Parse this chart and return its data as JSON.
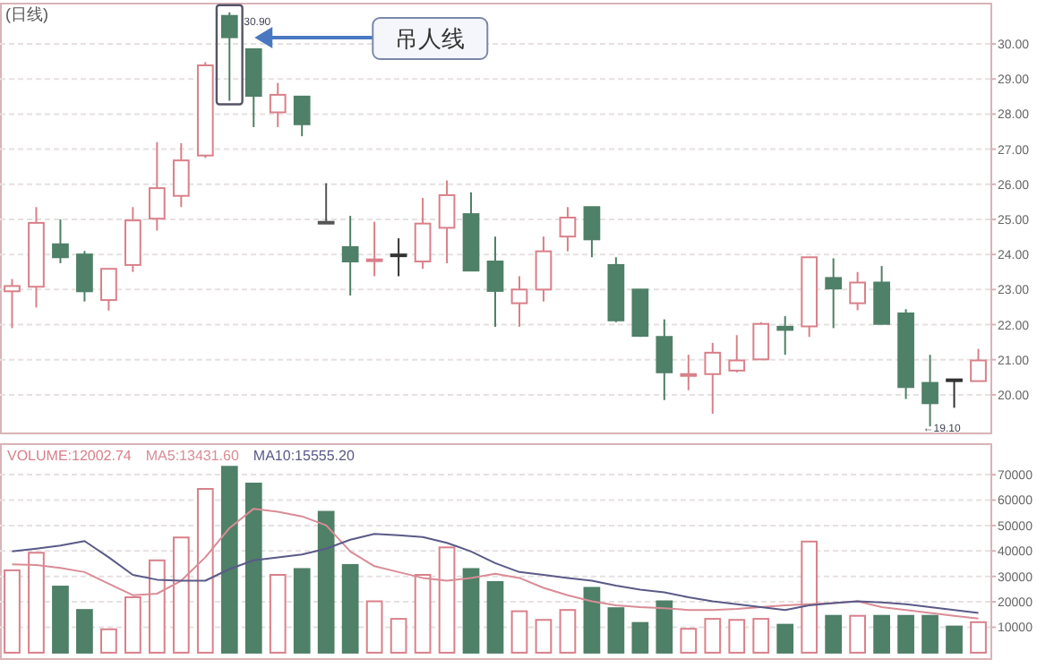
{
  "chart_data": [
    {
      "type": "candlestick",
      "title": "(日线)",
      "categories": [
        null,
        null,
        null,
        null,
        null,
        null,
        null,
        null,
        null,
        null,
        null,
        null,
        null,
        null,
        null,
        null,
        null,
        null,
        null,
        null,
        null,
        null,
        null,
        null,
        null,
        null,
        null,
        null,
        null,
        null,
        null,
        null,
        null,
        null,
        null,
        null,
        null,
        null,
        null,
        null,
        null
      ],
      "ohlc": [
        [
          22.95,
          23.3,
          21.9,
          23.1
        ],
        [
          23.08,
          25.35,
          22.49,
          24.9
        ],
        [
          24.29,
          25.0,
          23.75,
          23.92
        ],
        [
          24.0,
          24.1,
          22.66,
          22.95
        ],
        [
          22.7,
          23.6,
          22.4,
          23.59
        ],
        [
          23.7,
          25.35,
          23.5,
          24.97
        ],
        [
          25.02,
          27.2,
          24.68,
          25.89
        ],
        [
          25.67,
          27.17,
          25.35,
          26.68
        ],
        [
          26.82,
          29.48,
          26.75,
          29.39
        ],
        [
          30.8,
          30.9,
          28.38,
          30.19
        ],
        [
          29.85,
          29.85,
          27.63,
          28.52
        ],
        [
          28.05,
          28.89,
          27.63,
          28.55
        ],
        [
          28.5,
          28.5,
          27.37,
          27.71
        ],
        [
          24.93,
          26.03,
          24.93,
          24.93
        ],
        [
          24.21,
          25.1,
          22.83,
          23.8
        ],
        [
          23.84,
          24.93,
          23.38,
          23.86
        ],
        [
          24.0,
          24.46,
          23.38,
          24.0
        ],
        [
          23.8,
          25.61,
          23.59,
          24.88
        ],
        [
          24.76,
          26.11,
          23.75,
          25.69
        ],
        [
          25.15,
          25.77,
          23.54,
          23.54
        ],
        [
          23.8,
          24.51,
          21.94,
          22.96
        ],
        [
          22.61,
          23.38,
          21.94,
          23.0
        ],
        [
          23.0,
          24.51,
          22.66,
          24.09
        ],
        [
          24.51,
          25.35,
          24.09,
          25.05
        ],
        [
          25.35,
          25.35,
          23.92,
          24.43
        ],
        [
          23.7,
          23.92,
          22.07,
          22.12
        ],
        [
          23.0,
          23.0,
          21.65,
          21.68
        ],
        [
          21.65,
          22.15,
          19.85,
          20.64
        ],
        [
          20.59,
          21.14,
          20.13,
          20.59
        ],
        [
          20.59,
          21.48,
          19.46,
          21.2
        ],
        [
          20.69,
          21.7,
          20.64,
          20.98
        ],
        [
          21.01,
          22.07,
          21.0,
          22.02
        ],
        [
          21.94,
          22.24,
          21.14,
          21.85
        ],
        [
          21.95,
          23.92,
          21.65,
          23.92
        ],
        [
          23.33,
          23.89,
          21.9,
          23.03
        ],
        [
          22.61,
          23.5,
          22.41,
          23.2
        ],
        [
          23.2,
          23.67,
          22.02,
          22.02
        ],
        [
          22.32,
          22.44,
          19.88,
          20.22
        ],
        [
          20.34,
          21.14,
          19.1,
          19.76
        ],
        [
          20.44,
          20.44,
          19.63,
          20.44
        ],
        [
          20.39,
          21.31,
          20.39,
          20.98
        ]
      ],
      "colors": [
        "#d9808a",
        "#d9808a",
        "#4f8068",
        "#4f8068",
        "#d9808a",
        "#d9808a",
        "#d9808a",
        "#d9808a",
        "#d9808a",
        "#4f8068",
        "#4f8068",
        "#d9808a",
        "#4f8068",
        "#555555",
        "#4f8068",
        "#d9808a",
        "#333333",
        "#d9808a",
        "#d9808a",
        "#4f8068",
        "#4f8068",
        "#d9808a",
        "#d9808a",
        "#d9808a",
        "#4f8068",
        "#4f8068",
        "#4f8068",
        "#4f8068",
        "#d9808a",
        "#d9808a",
        "#d9808a",
        "#d9808a",
        "#4f8068",
        "#d9808a",
        "#4f8068",
        "#d9808a",
        "#4f8068",
        "#4f8068",
        "#4f8068",
        "#333333",
        "#d9808a"
      ],
      "ylim": [
        18.9,
        31.15
      ],
      "yticks": [
        {
          "value": 20,
          "label": "20.00"
        },
        {
          "value": 21,
          "label": "21.00"
        },
        {
          "value": 22,
          "label": "22.00"
        },
        {
          "value": 23,
          "label": "23.00"
        },
        {
          "value": 24,
          "label": "24.00"
        },
        {
          "value": 25,
          "label": "25.00"
        },
        {
          "value": 26,
          "label": "26.00"
        },
        {
          "value": 27,
          "label": "27.00"
        },
        {
          "value": 28,
          "label": "28.00"
        },
        {
          "value": 29,
          "label": "29.00"
        },
        {
          "value": 30,
          "label": "30.00"
        }
      ],
      "grid": "y",
      "annotations": [
        "30.90",
        "←19.10",
        "吊人线"
      ]
    },
    {
      "type": "bar",
      "categories": [
        null,
        null,
        null,
        null,
        null,
        null,
        null,
        null,
        null,
        null,
        null,
        null,
        null,
        null,
        null,
        null,
        null,
        null,
        null,
        null,
        null,
        null,
        null,
        null,
        null,
        null,
        null,
        null,
        null,
        null,
        null,
        null,
        null,
        null,
        null,
        null,
        null,
        null,
        null,
        null,
        null
      ],
      "series": [
        {
          "name": "VOLUME:12002.74",
          "color": "#d9808a",
          "colors": [
            "#d9808a",
            "#d9808a",
            "#4f8068",
            "#4f8068",
            "#d9808a",
            "#d9808a",
            "#d9808a",
            "#d9808a",
            "#d9808a",
            "#4f8068",
            "#4f8068",
            "#d9808a",
            "#4f8068",
            "#4f8068",
            "#4f8068",
            "#d9808a",
            "#d9808a",
            "#d9808a",
            "#d9808a",
            "#4f8068",
            "#4f8068",
            "#d9808a",
            "#d9808a",
            "#d9808a",
            "#4f8068",
            "#4f8068",
            "#4f8068",
            "#4f8068",
            "#d9808a",
            "#d9808a",
            "#d9808a",
            "#d9808a",
            "#4f8068",
            "#d9808a",
            "#4f8068",
            "#d9808a",
            "#4f8068",
            "#4f8068",
            "#4f8068",
            "#4f8068",
            "#d9808a"
          ],
          "values": [
            32400,
            39300,
            26000,
            16800,
            9200,
            21800,
            36300,
            45300,
            64400,
            73100,
            66500,
            30600,
            32900,
            55400,
            34500,
            20200,
            13300,
            30600,
            41400,
            32900,
            27800,
            16300,
            12900,
            16800,
            25500,
            17500,
            11700,
            20200,
            9400,
            13300,
            12900,
            13300,
            11000,
            43700,
            14500,
            14500,
            14500,
            14500,
            14500,
            10300,
            12000
          ]
        },
        {
          "type": "line",
          "name": "MA5:13431.60",
          "color": "#d98c96",
          "values": [
            34700,
            34500,
            33300,
            31700,
            27100,
            22600,
            23200,
            28300,
            37500,
            49000,
            56600,
            55400,
            53600,
            50100,
            39800,
            34000,
            31700,
            29400,
            28300,
            29400,
            31000,
            29400,
            25500,
            22600,
            20200,
            18600,
            17900,
            17500,
            16800,
            16800,
            17200,
            17900,
            18600,
            19100,
            19500,
            20200,
            17900,
            16800,
            15600,
            14500,
            13400
          ]
        },
        {
          "type": "line",
          "name": "MA10:15555.20",
          "color": "#5a5a88",
          "values": [
            39800,
            40900,
            42100,
            43900,
            37500,
            30600,
            28700,
            28300,
            28300,
            32900,
            36300,
            37500,
            38600,
            40900,
            44400,
            46700,
            46200,
            45500,
            43200,
            39800,
            35200,
            31700,
            30600,
            29400,
            28300,
            26400,
            24800,
            23700,
            21800,
            20200,
            19100,
            17900,
            16800,
            18600,
            19500,
            20200,
            19800,
            19100,
            17900,
            16800,
            15600
          ]
        }
      ],
      "ylim": [
        -2500,
        82000
      ],
      "yticks": [
        10000,
        20000,
        30000,
        40000,
        50000,
        60000,
        70000
      ],
      "grid": "y",
      "legend": "top left"
    }
  ]
}
